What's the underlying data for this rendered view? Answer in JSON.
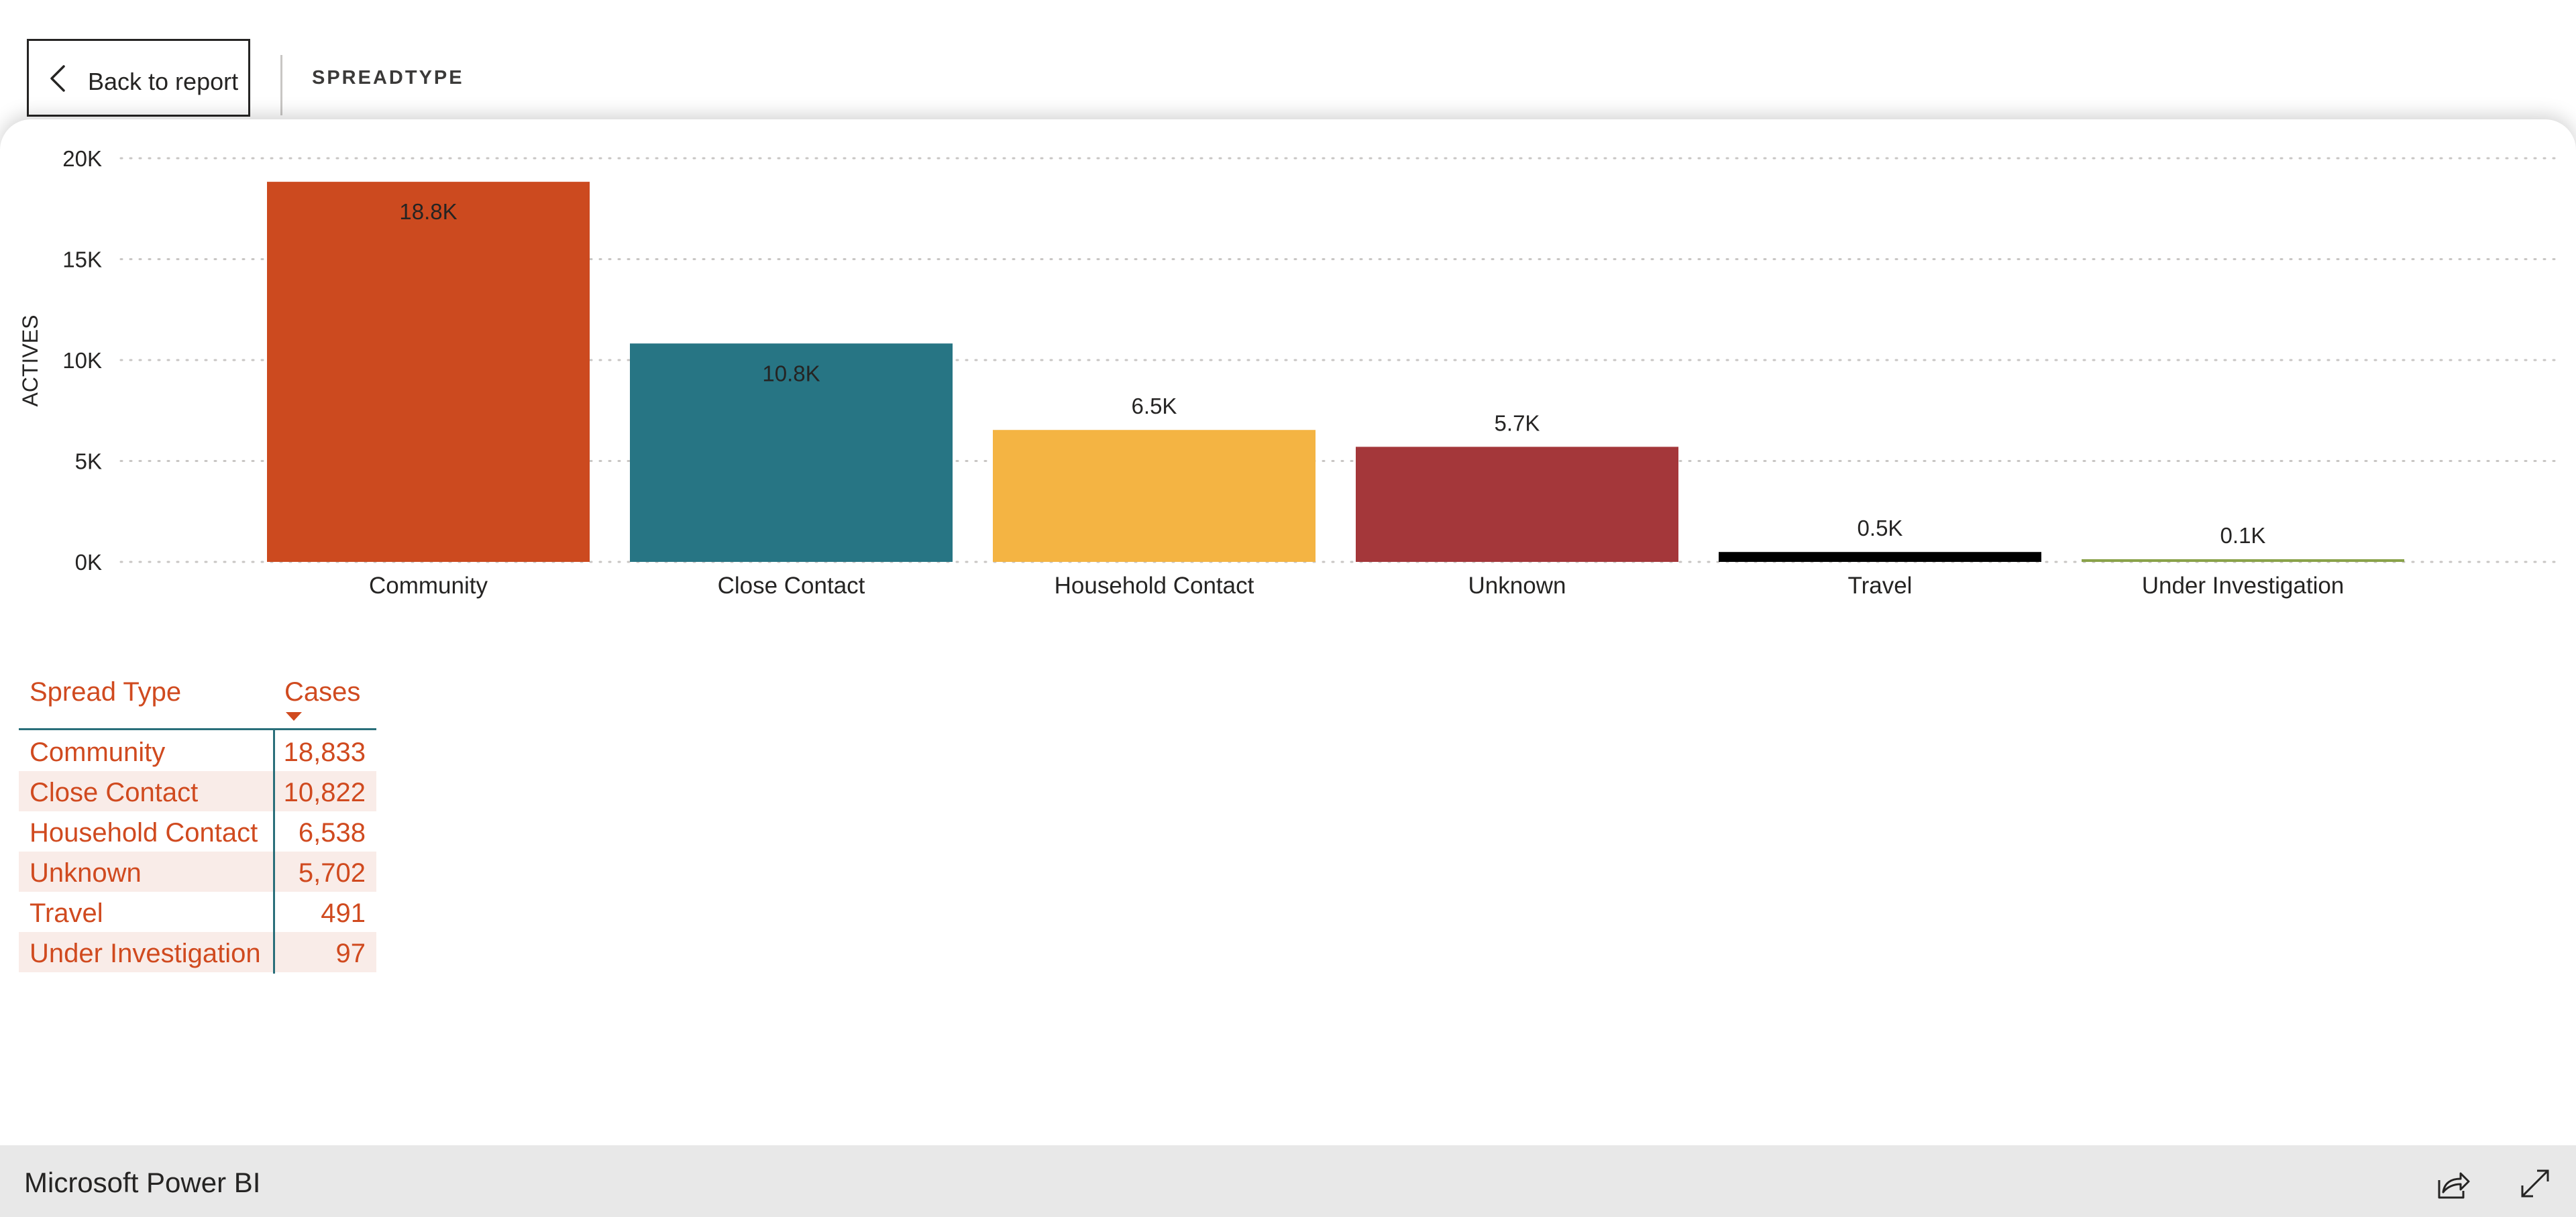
{
  "header": {
    "back_label": "Back to report",
    "title": "SPREADTYPE"
  },
  "chart_data": {
    "type": "bar",
    "categories": [
      "Community",
      "Close Contact",
      "Household Contact",
      "Unknown",
      "Travel",
      "Under Investigation"
    ],
    "values": [
      18833,
      10822,
      6538,
      5702,
      491,
      97
    ],
    "data_labels": [
      "18.8K",
      "10.8K",
      "6.5K",
      "5.7K",
      "0.5K",
      "0.1K"
    ],
    "colors": [
      "#cc4a1f",
      "#277584",
      "#f4b443",
      "#a4373a",
      "#000000",
      "#8aa24a"
    ],
    "ylabel": "ACTIVES",
    "ylim": [
      0,
      20000
    ],
    "yticks": [
      0,
      5000,
      10000,
      15000,
      20000
    ],
    "ytick_labels": [
      "0K",
      "5K",
      "10K",
      "15K",
      "20K"
    ],
    "grid": true
  },
  "table": {
    "headers": {
      "spread_type": "Spread Type",
      "cases": "Cases"
    },
    "rows": [
      {
        "name": "Community",
        "cases": "18,833"
      },
      {
        "name": "Close Contact",
        "cases": "10,822"
      },
      {
        "name": "Household Contact",
        "cases": "6,538"
      },
      {
        "name": "Unknown",
        "cases": "5,702"
      },
      {
        "name": "Travel",
        "cases": "491"
      },
      {
        "name": "Under Investigation",
        "cases": "97"
      }
    ]
  },
  "footer": {
    "brand": "Microsoft Power BI"
  },
  "icons": {
    "back": "chevron-left-icon",
    "sort": "sort-descending-icon",
    "share": "share-icon",
    "expand": "expand-icon"
  }
}
